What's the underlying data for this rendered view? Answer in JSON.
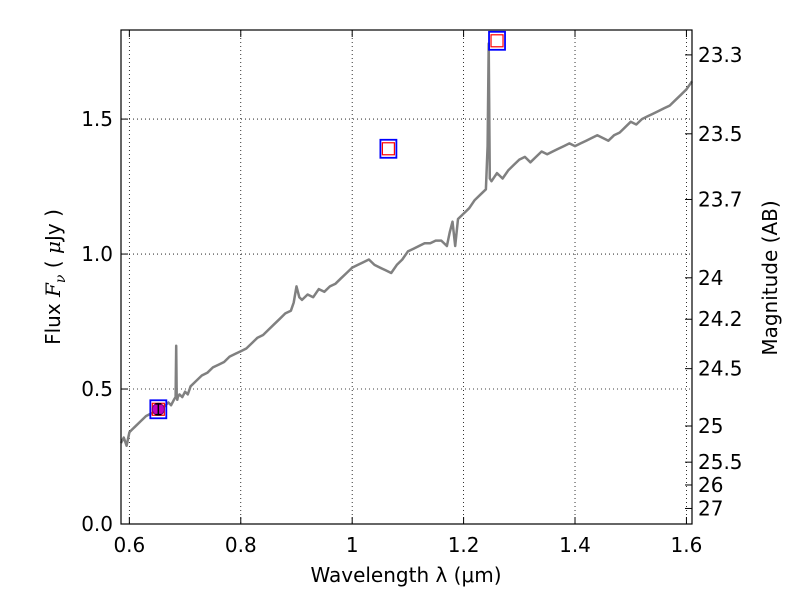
{
  "chart_data": {
    "type": "line",
    "xlabel": "Wavelength  λ (μm)",
    "ylabel": "Flux  F_ν  ( μJy )",
    "ylabel_right": "Magnitude (AB)",
    "xlim": [
      0.585,
      1.61
    ],
    "ylim": [
      0.0,
      1.83
    ],
    "grid": true,
    "grid_style": "dotted",
    "x_ticks": [
      0.6,
      0.8,
      1.0,
      1.2,
      1.4,
      1.6
    ],
    "x_tick_labels": [
      "0.6",
      "0.8",
      "1",
      "1.2",
      "1.4",
      "1.6"
    ],
    "y_ticks": [
      0.0,
      0.5,
      1.0,
      1.5
    ],
    "y_tick_labels": [
      "0.0",
      "0.5",
      "1.0",
      "1.5"
    ],
    "right_ticks": [
      {
        "mag": 23.3,
        "label": "23.3"
      },
      {
        "mag": 23.5,
        "label": "23.5"
      },
      {
        "mag": 23.7,
        "label": "23.7"
      },
      {
        "mag": 24.0,
        "label": "24"
      },
      {
        "mag": 24.2,
        "label": "24.2"
      },
      {
        "mag": 24.5,
        "label": "24.5"
      },
      {
        "mag": 25.0,
        "label": "25"
      },
      {
        "mag": 25.5,
        "label": "25.5"
      },
      {
        "mag": 26.0,
        "label": "26"
      },
      {
        "mag": 27.0,
        "label": "27"
      }
    ],
    "series": [
      {
        "kind": "spectrum",
        "color": "#808080",
        "x": [
          0.585,
          0.59,
          0.595,
          0.6,
          0.605,
          0.61,
          0.62,
          0.63,
          0.64,
          0.65,
          0.66,
          0.67,
          0.675,
          0.68,
          0.683,
          0.684,
          0.685,
          0.686,
          0.687,
          0.69,
          0.695,
          0.7,
          0.705,
          0.71,
          0.72,
          0.73,
          0.74,
          0.75,
          0.76,
          0.77,
          0.78,
          0.79,
          0.8,
          0.81,
          0.82,
          0.83,
          0.84,
          0.85,
          0.86,
          0.87,
          0.88,
          0.89,
          0.895,
          0.9,
          0.905,
          0.91,
          0.92,
          0.93,
          0.94,
          0.95,
          0.96,
          0.97,
          0.98,
          0.99,
          1.0,
          1.01,
          1.02,
          1.03,
          1.04,
          1.05,
          1.06,
          1.07,
          1.08,
          1.09,
          1.1,
          1.11,
          1.12,
          1.13,
          1.14,
          1.15,
          1.16,
          1.17,
          1.175,
          1.18,
          1.185,
          1.19,
          1.2,
          1.21,
          1.22,
          1.23,
          1.24,
          1.243,
          1.245,
          1.247,
          1.25,
          1.26,
          1.27,
          1.28,
          1.29,
          1.3,
          1.31,
          1.32,
          1.33,
          1.34,
          1.35,
          1.36,
          1.37,
          1.38,
          1.39,
          1.4,
          1.41,
          1.42,
          1.43,
          1.44,
          1.45,
          1.46,
          1.47,
          1.48,
          1.49,
          1.5,
          1.51,
          1.52,
          1.53,
          1.54,
          1.55,
          1.56,
          1.57,
          1.58,
          1.59,
          1.6,
          1.61
        ],
        "y": [
          0.3,
          0.32,
          0.29,
          0.34,
          0.35,
          0.36,
          0.38,
          0.4,
          0.41,
          0.42,
          0.43,
          0.45,
          0.44,
          0.46,
          0.47,
          0.66,
          0.48,
          0.46,
          0.47,
          0.48,
          0.47,
          0.49,
          0.48,
          0.51,
          0.53,
          0.55,
          0.56,
          0.58,
          0.59,
          0.6,
          0.62,
          0.63,
          0.64,
          0.65,
          0.67,
          0.69,
          0.7,
          0.72,
          0.74,
          0.76,
          0.78,
          0.79,
          0.82,
          0.88,
          0.84,
          0.83,
          0.85,
          0.84,
          0.87,
          0.86,
          0.88,
          0.89,
          0.91,
          0.93,
          0.95,
          0.96,
          0.97,
          0.98,
          0.96,
          0.95,
          0.94,
          0.93,
          0.96,
          0.98,
          1.01,
          1.02,
          1.03,
          1.04,
          1.04,
          1.05,
          1.05,
          1.03,
          1.08,
          1.12,
          1.03,
          1.13,
          1.15,
          1.17,
          1.2,
          1.22,
          1.24,
          1.4,
          1.78,
          1.28,
          1.27,
          1.3,
          1.28,
          1.31,
          1.33,
          1.35,
          1.36,
          1.34,
          1.36,
          1.38,
          1.37,
          1.38,
          1.39,
          1.4,
          1.41,
          1.4,
          1.41,
          1.42,
          1.43,
          1.44,
          1.43,
          1.42,
          1.44,
          1.45,
          1.47,
          1.49,
          1.48,
          1.5,
          1.51,
          1.52,
          1.53,
          1.54,
          1.55,
          1.57,
          1.59,
          1.61,
          1.64
        ]
      },
      {
        "kind": "photometry",
        "marker": "square",
        "edge_color": "#0000ff",
        "inner_color": "#ff0000",
        "x": [
          0.652,
          1.065,
          1.26
        ],
        "y": [
          0.425,
          1.39,
          1.79
        ]
      },
      {
        "kind": "measured",
        "marker": "circle",
        "color": "#bf00bf",
        "errorbar_color": "#000000",
        "x": [
          0.652
        ],
        "y": [
          0.425
        ],
        "yerr": [
          0.02
        ]
      }
    ]
  }
}
